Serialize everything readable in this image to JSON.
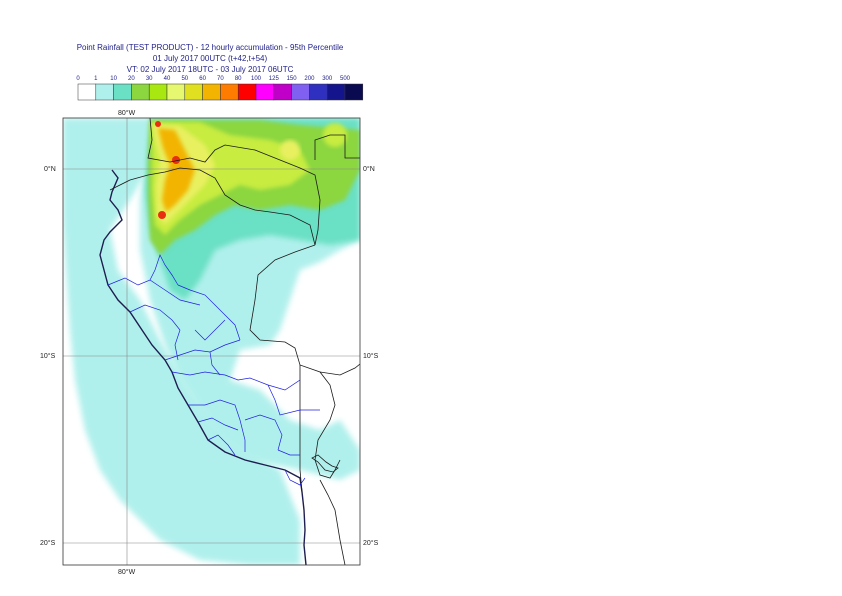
{
  "title": {
    "line1": "Point Rainfall (TEST PRODUCT) - 12 hourly accumulation - 95th Percentile",
    "line2": "01 July 2017 00UTC (t+42,t+54)",
    "line3": "VT: 02 July 2017 18UTC - 03 July 2017 06UTC"
  },
  "legend": {
    "ticks": [
      "0",
      "1",
      "10",
      "20",
      "30",
      "40",
      "50",
      "60",
      "70",
      "80",
      "100",
      "125",
      "150",
      "200",
      "300",
      "500"
    ],
    "colors": [
      "#ffffff",
      "#b0f0ec",
      "#6ae0c4",
      "#8cd640",
      "#a8e810",
      "#e6f870",
      "#e0e020",
      "#f2b400",
      "#ff7c00",
      "#ff0000",
      "#ff00ff",
      "#c000c8",
      "#8060f0",
      "#3030c0",
      "#14148c",
      "#0a0a50"
    ]
  },
  "map": {
    "lat_labels": [
      "0°N",
      "10°S",
      "20°S"
    ],
    "lon_labels": [
      "80°W",
      "80°W"
    ],
    "colors": {
      "ocean_light": "#b0f0ec",
      "teal": "#6ae0c4",
      "green": "#8cd640",
      "lime": "#c8ec40",
      "yellow": "#e8f060",
      "orange": "#f2b400",
      "red": "#e83010",
      "coast": "#1e1e50",
      "border": "#1a1a1a",
      "region_border": "#2020e0",
      "grid": "#888888"
    }
  }
}
